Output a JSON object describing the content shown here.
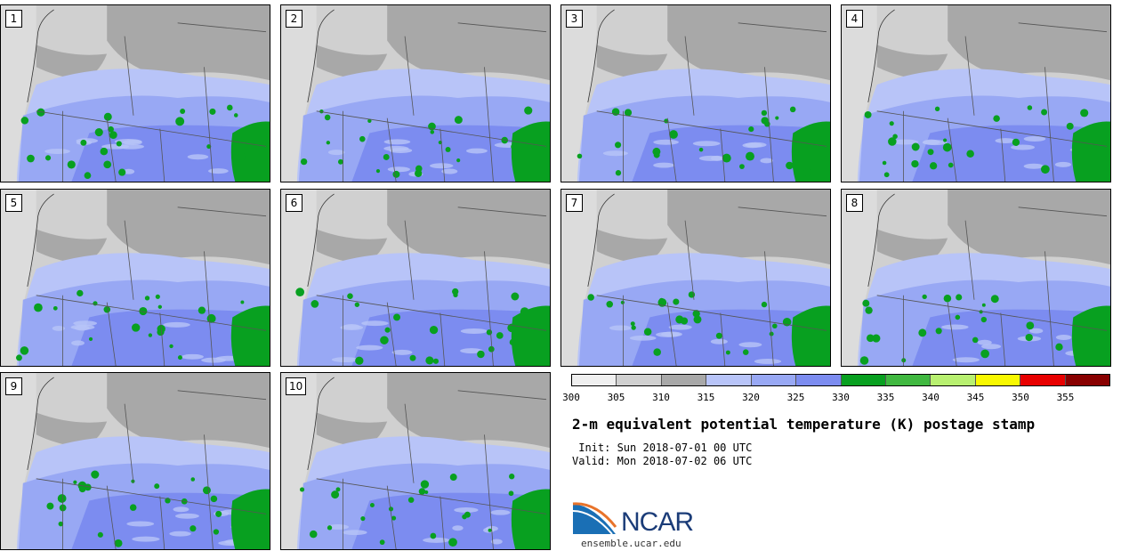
{
  "panels": [
    "1",
    "2",
    "3",
    "4",
    "5",
    "6",
    "7",
    "8",
    "9",
    "10"
  ],
  "colorbar": {
    "ticks": [
      "300",
      "305",
      "310",
      "315",
      "320",
      "325",
      "330",
      "335",
      "340",
      "345",
      "350",
      "355"
    ],
    "colors": [
      "#efefef",
      "#d0d0d0",
      "#a8a8a8",
      "#b8c4f8",
      "#98a8f4",
      "#7c8cf0",
      "#08a020",
      "#40b840",
      "#b8f070",
      "#f8f800",
      "#e80000",
      "#880000"
    ],
    "units": "K"
  },
  "title": "2-m equivalent potential temperature (K) postage stamp",
  "init": " Init: Sun 2018-07-01 00 UTC",
  "valid": "Valid: Mon 2018-07-02 06 UTC",
  "logo": {
    "name": "NCAR",
    "url": "ensemble.ucar.edu"
  },
  "map_colors": {
    "ocean": "#dcdcdc",
    "land_cool": "#a8a8a8",
    "land_light": "#d0d0d0",
    "blue_light": "#b8c4f8",
    "blue_mid": "#98a8f4",
    "blue_dark": "#7c8cf0",
    "green": "#08a020"
  }
}
